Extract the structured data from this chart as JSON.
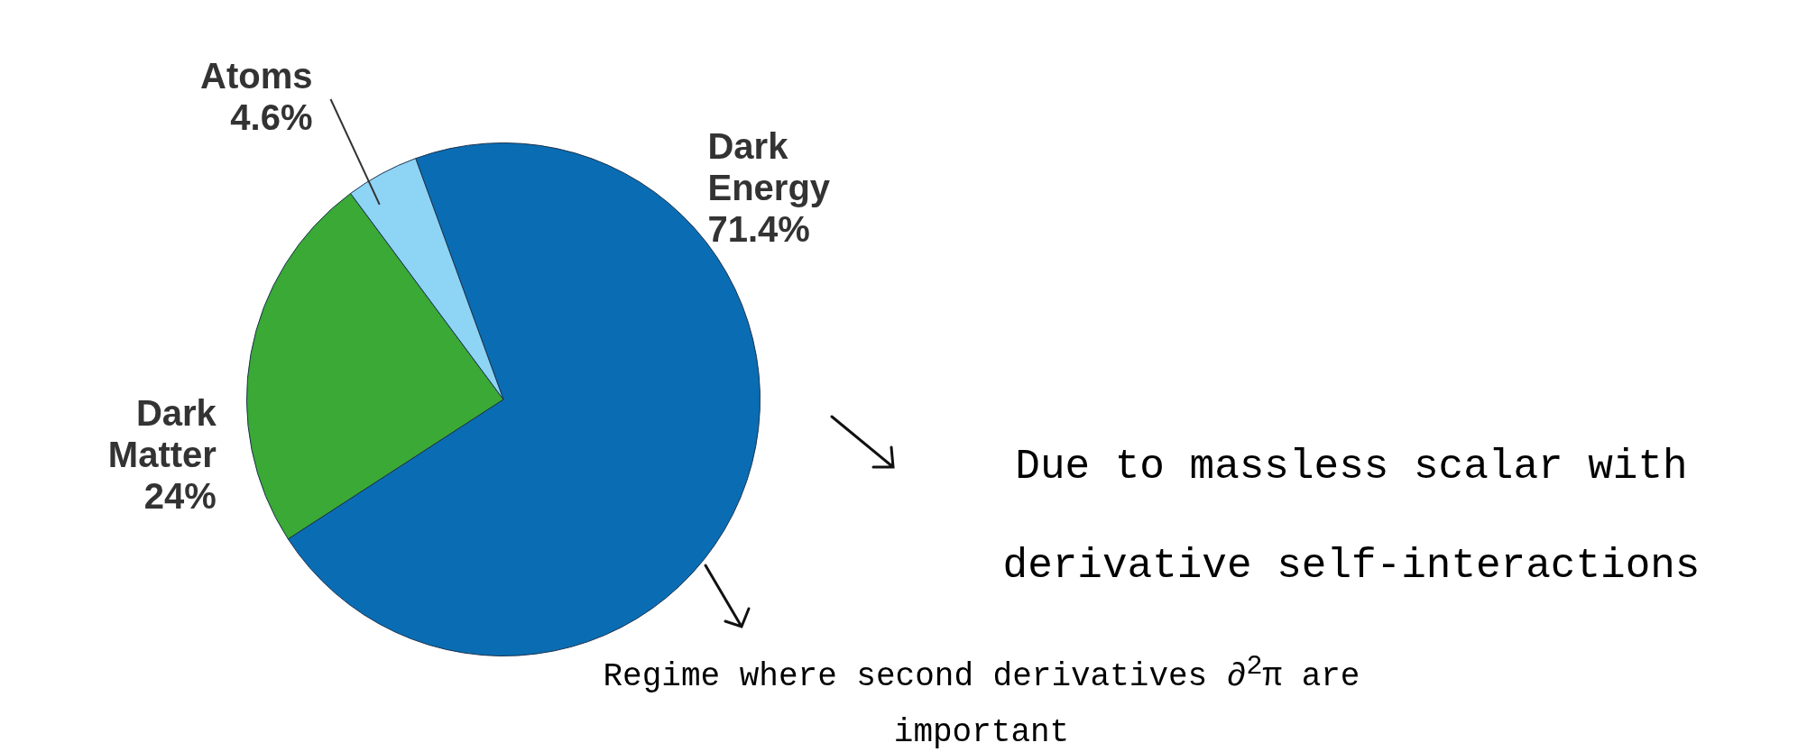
{
  "chart_data": {
    "type": "pie",
    "categories": [
      "Dark Energy",
      "Dark Matter",
      "Atoms"
    ],
    "values": [
      71.4,
      24,
      4.6
    ],
    "colors": [
      "#0a6db3",
      "#3aa935",
      "#8ed4f4"
    ],
    "value_labels": [
      "71.4%",
      "24%",
      "4.6%"
    ],
    "legend": false,
    "annotations": [
      "Due to massless scalar with derivative self-interactions",
      "Regime where second derivatives ∂$^{2}$π are important"
    ]
  }
}
